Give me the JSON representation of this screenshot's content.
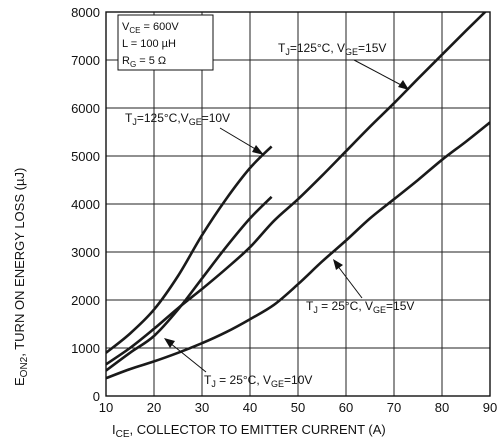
{
  "chart_data": {
    "type": "line",
    "xlabel_parts": [
      "I",
      "CE",
      ", COLLECTOR TO EMITTER CURRENT (A)"
    ],
    "ylabel_parts": [
      "E",
      "ON2",
      ", TURN ON ENERGY LOSS (µJ)"
    ],
    "xlim": [
      10,
      90
    ],
    "ylim": [
      0,
      8000
    ],
    "xticks": [
      10,
      20,
      30,
      40,
      50,
      60,
      70,
      80,
      90
    ],
    "yticks": [
      0,
      1000,
      2000,
      3000,
      4000,
      5000,
      6000,
      7000,
      8000
    ],
    "grid": true,
    "conditions": {
      "vce": [
        "V",
        "CE",
        " =  600V"
      ],
      "l": "L = 100 µH",
      "rg": [
        "R",
        "G",
        " = 5 Ω"
      ]
    },
    "series": [
      {
        "name": "T_J = 125°C, V_GE = 15V",
        "label_parts": [
          "T",
          "J",
          "=125°C, V",
          "GE",
          "=15V"
        ],
        "x": [
          10,
          15,
          20,
          25,
          30,
          35,
          40,
          45,
          50,
          55,
          60,
          65,
          70,
          75,
          80,
          85,
          90
        ],
        "y": [
          660,
          1000,
          1400,
          1830,
          2230,
          2650,
          3100,
          3650,
          4100,
          4590,
          5100,
          5610,
          6100,
          6610,
          7110,
          7610,
          8100
        ]
      },
      {
        "name": "T_J = 125°C, V_GE = 10V",
        "label_parts": [
          "T",
          "J",
          "=125°C,V",
          "GE",
          "=10V"
        ],
        "x": [
          10,
          15,
          20,
          25,
          30,
          35,
          40,
          44.5
        ],
        "y": [
          900,
          1300,
          1800,
          2500,
          3350,
          4100,
          4750,
          5200
        ]
      },
      {
        "name": "T_J = 25°C, V_GE = 15V",
        "label_parts": [
          "T",
          "J",
          " = 25°C, V",
          "GE",
          "=15V"
        ],
        "x": [
          10,
          15,
          20,
          25,
          30,
          35,
          40,
          45,
          50,
          55,
          60,
          65,
          70,
          75,
          80,
          85,
          90
        ],
        "y": [
          370,
          560,
          720,
          900,
          1100,
          1330,
          1600,
          1900,
          2330,
          2800,
          3240,
          3700,
          4100,
          4500,
          4920,
          5300,
          5700
        ]
      },
      {
        "name": "T_J = 25°C, V_GE = 10V",
        "label_parts": [
          "T",
          "J",
          " = 25°C, V",
          "GE",
          "=10V"
        ],
        "x": [
          10,
          15,
          20,
          25,
          30,
          35,
          40,
          44.5
        ],
        "y": [
          530,
          900,
          1250,
          1800,
          2450,
          3100,
          3700,
          4150
        ]
      }
    ]
  }
}
